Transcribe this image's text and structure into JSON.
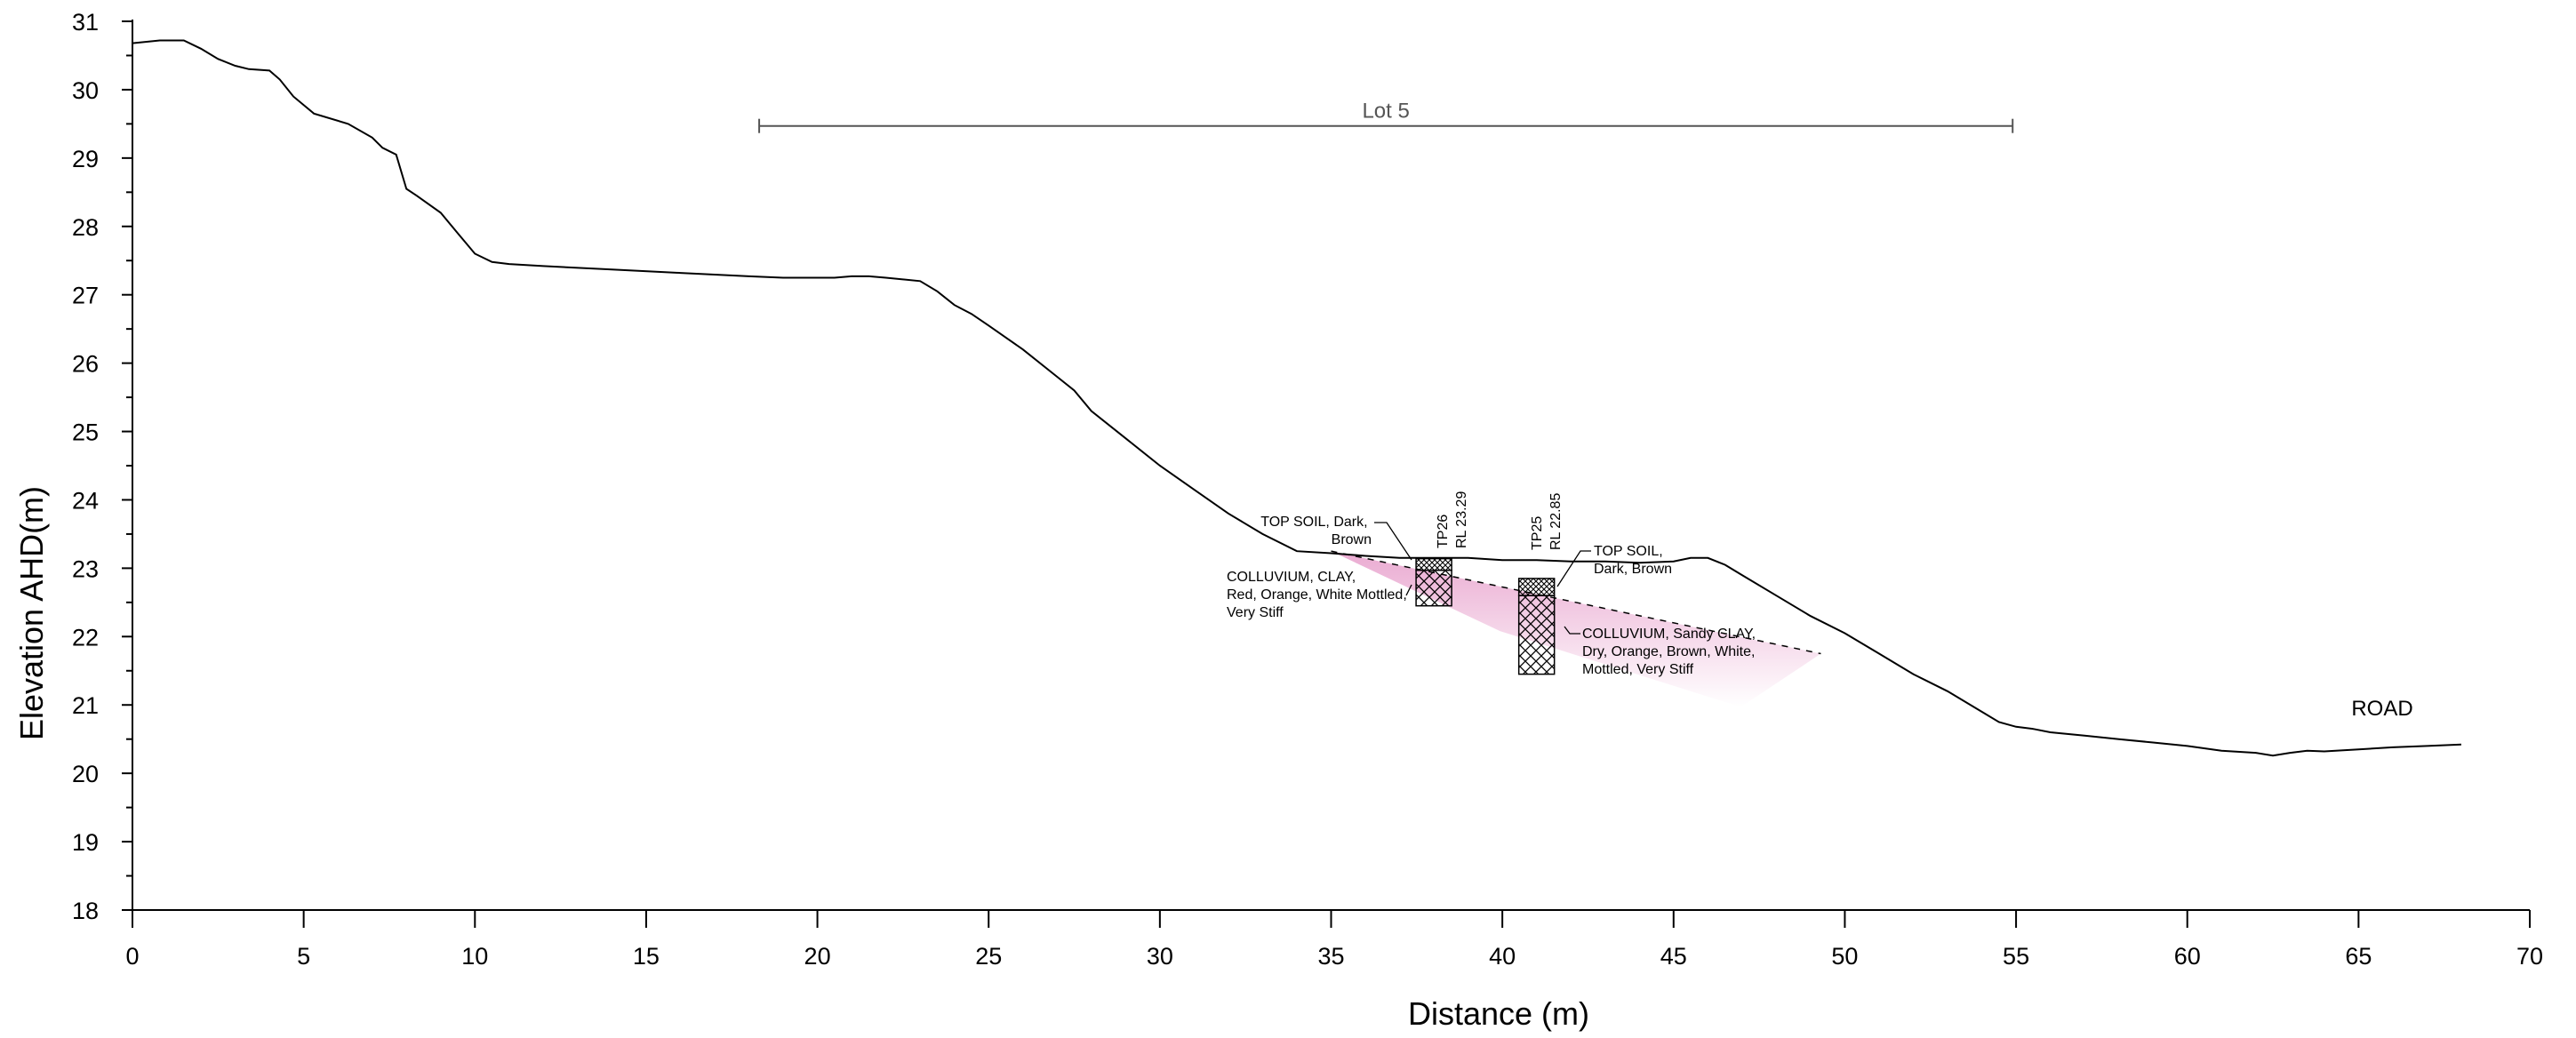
{
  "chart_data": {
    "type": "line",
    "xlabel": "Distance (m)",
    "ylabel": "Elevation AHD(m)",
    "xlim": [
      0,
      70
    ],
    "ylim": [
      18,
      31
    ],
    "x_ticks": [
      "0",
      "5",
      "10",
      "15",
      "20",
      "25",
      "30",
      "35",
      "40",
      "45",
      "50",
      "55",
      "60",
      "65",
      "70"
    ],
    "y_ticks": [
      "18",
      "19",
      "20",
      "21",
      "22",
      "23",
      "24",
      "25",
      "26",
      "27",
      "28",
      "29",
      "30",
      "31"
    ],
    "series": [
      {
        "name": "",
        "x": [
          0,
          0.8,
          1.5,
          2,
          2.5,
          3,
          3.4,
          4,
          4.3,
          4.7,
          5.3,
          6.3,
          7,
          7.3,
          7.7,
          8,
          8.3,
          9,
          9.5,
          10,
          10.5,
          11,
          12,
          14,
          16,
          18,
          19,
          19.5,
          20,
          20.5,
          21,
          21.5,
          22,
          23,
          23.5,
          24,
          24.5,
          25,
          26,
          27,
          27.5,
          28,
          29,
          30,
          31,
          32,
          33,
          34,
          35,
          36,
          37,
          38,
          39,
          40,
          41,
          42,
          43,
          44,
          45,
          45.5,
          46,
          46.5,
          47,
          48,
          49,
          50,
          51,
          52,
          53,
          54,
          54.5,
          55,
          55.5,
          56,
          57,
          58,
          59,
          60,
          61,
          62,
          62.5,
          63,
          63.5,
          64,
          65,
          66,
          67,
          68
        ],
        "y": [
          30.68,
          30.72,
          30.72,
          30.6,
          30.45,
          30.35,
          30.3,
          30.28,
          30.15,
          29.9,
          29.65,
          29.5,
          29.3,
          29.15,
          29.05,
          28.55,
          28.45,
          28.2,
          27.9,
          27.6,
          27.48,
          27.45,
          27.42,
          27.37,
          27.32,
          27.27,
          27.25,
          27.25,
          27.25,
          27.25,
          27.27,
          27.27,
          27.25,
          27.2,
          27.05,
          26.85,
          26.72,
          26.55,
          26.2,
          25.8,
          25.6,
          25.3,
          24.9,
          24.5,
          24.15,
          23.8,
          23.5,
          23.25,
          23.22,
          23.18,
          23.15,
          23.15,
          23.15,
          23.12,
          23.12,
          23.1,
          23.1,
          23.08,
          23.1,
          23.15,
          23.15,
          23.05,
          22.9,
          22.6,
          22.3,
          22.05,
          21.75,
          21.45,
          21.2,
          20.9,
          20.75,
          20.68,
          20.65,
          20.6,
          20.55,
          20.5,
          20.45,
          20.4,
          20.33,
          20.3,
          20.26,
          20.3,
          20.33,
          20.32,
          20.35,
          20.38,
          20.4,
          20.42
        ]
      }
    ],
    "lot": {
      "label": "Lot 5",
      "x_start": 18.3,
      "x_end": 54.9,
      "y": 29.47
    },
    "road_label": "ROAD",
    "test_pits": [
      {
        "id": "TP26",
        "rl": "RL 23.29",
        "x": 38,
        "topsoil_top": 23.14,
        "topsoil_bottom": 22.97,
        "base": 22.45,
        "topsoil_label": [
          "TOP SOIL, Dark,",
          "Brown"
        ],
        "colluvium_label": [
          "COLLUVIUM, CLAY,",
          "Red, Orange, White Mottled,",
          "Very Stiff"
        ]
      },
      {
        "id": "TP25",
        "rl": "RL 22.85",
        "x": 41,
        "topsoil_top": 22.85,
        "topsoil_bottom": 22.6,
        "base": 21.45,
        "topsoil_label": [
          "TOP SOIL,",
          "Dark, Brown"
        ],
        "colluvium_label": [
          "COLLUVIUM, Sandy CLAY,",
          "Dry, Orange, Brown, White,",
          "Mottled, Very Stiff"
        ]
      }
    ],
    "colluvium_band": {
      "color": "#e9a6cf",
      "boundary_x": [
        35,
        49.3
      ],
      "boundary_y": [
        23.25,
        21.75
      ]
    }
  }
}
